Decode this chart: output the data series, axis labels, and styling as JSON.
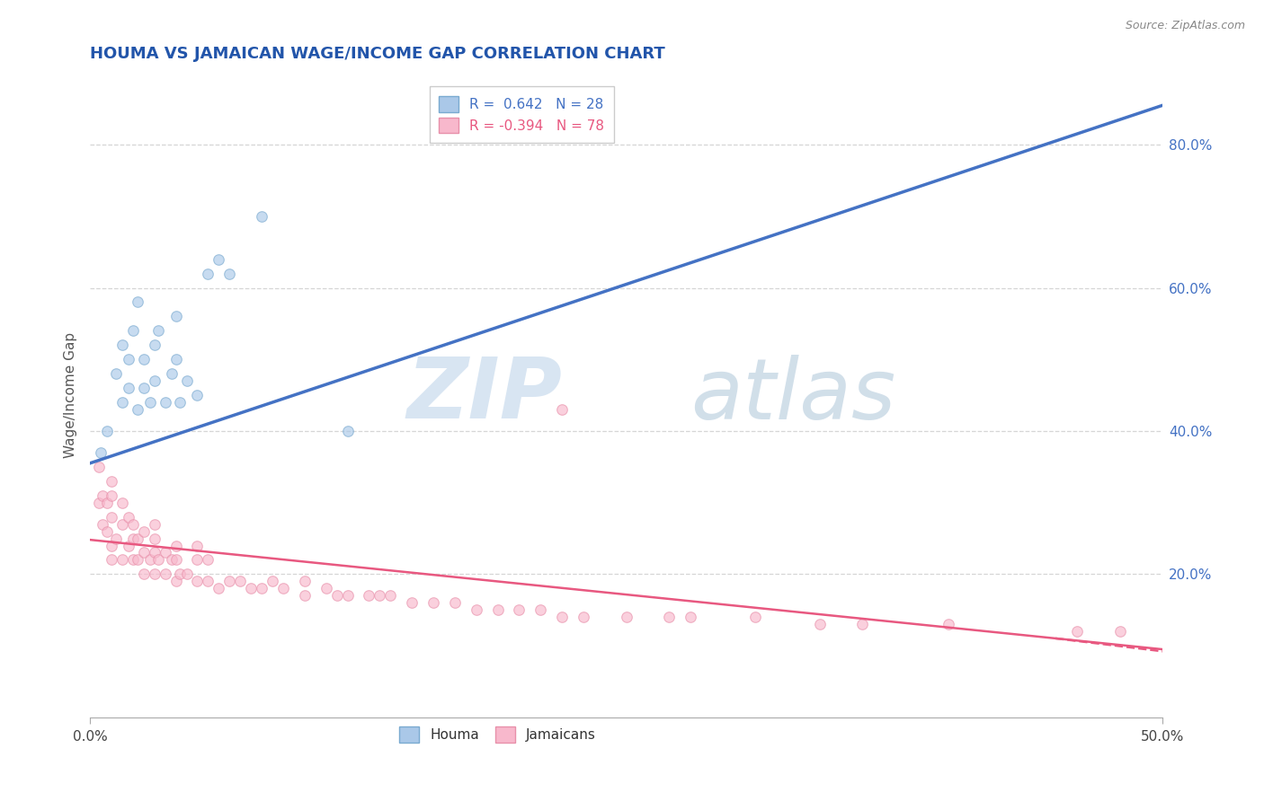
{
  "title": "HOUMA VS JAMAICAN WAGE/INCOME GAP CORRELATION CHART",
  "source_text": "Source: ZipAtlas.com",
  "ylabel": "Wage/Income Gap",
  "xmin": 0.0,
  "xmax": 0.5,
  "ymin": 0.0,
  "ymax": 0.9,
  "xtick_labels": [
    "0.0%",
    "50.0%"
  ],
  "xtick_vals": [
    0.0,
    0.5
  ],
  "ytick_labels": [
    "20.0%",
    "40.0%",
    "60.0%",
    "80.0%"
  ],
  "ytick_vals": [
    0.2,
    0.4,
    0.6,
    0.8
  ],
  "houma_R": 0.642,
  "houma_N": 28,
  "jamaican_R": -0.394,
  "jamaican_N": 78,
  "houma_color": "#aac8e8",
  "houma_edge_color": "#7aaad0",
  "jamaican_color": "#f8b8cc",
  "jamaican_edge_color": "#e890aa",
  "houma_line_color": "#4472c4",
  "jamaican_line_color": "#e85880",
  "title_color": "#2255aa",
  "watermark_zip_color": "#b0cce8",
  "watermark_atlas_color": "#c8dce8",
  "grid_style": "--",
  "grid_color": "#cccccc",
  "grid_alpha": 0.8,
  "marker_size": 70,
  "marker_alpha": 0.65,
  "houma_line_y0": 0.355,
  "houma_line_y1": 0.855,
  "jamaican_line_y0": 0.248,
  "jamaican_line_y1": 0.095,
  "houma_scatter_x": [
    0.005,
    0.008,
    0.012,
    0.015,
    0.015,
    0.018,
    0.018,
    0.02,
    0.022,
    0.022,
    0.025,
    0.025,
    0.028,
    0.03,
    0.03,
    0.032,
    0.035,
    0.038,
    0.04,
    0.04,
    0.042,
    0.045,
    0.05,
    0.055,
    0.06,
    0.065,
    0.08,
    0.12
  ],
  "houma_scatter_y": [
    0.37,
    0.4,
    0.48,
    0.44,
    0.52,
    0.46,
    0.5,
    0.54,
    0.43,
    0.58,
    0.46,
    0.5,
    0.44,
    0.47,
    0.52,
    0.54,
    0.44,
    0.48,
    0.5,
    0.56,
    0.44,
    0.47,
    0.45,
    0.62,
    0.64,
    0.62,
    0.7,
    0.4
  ],
  "jamaican_scatter_x": [
    0.004,
    0.004,
    0.006,
    0.006,
    0.008,
    0.008,
    0.01,
    0.01,
    0.01,
    0.01,
    0.01,
    0.012,
    0.015,
    0.015,
    0.015,
    0.018,
    0.018,
    0.02,
    0.02,
    0.02,
    0.022,
    0.022,
    0.025,
    0.025,
    0.025,
    0.028,
    0.03,
    0.03,
    0.03,
    0.03,
    0.032,
    0.035,
    0.035,
    0.038,
    0.04,
    0.04,
    0.04,
    0.042,
    0.045,
    0.05,
    0.05,
    0.05,
    0.055,
    0.055,
    0.06,
    0.065,
    0.07,
    0.075,
    0.08,
    0.085,
    0.09,
    0.1,
    0.1,
    0.11,
    0.115,
    0.12,
    0.13,
    0.135,
    0.14,
    0.15,
    0.16,
    0.17,
    0.18,
    0.19,
    0.2,
    0.21,
    0.22,
    0.23,
    0.25,
    0.27,
    0.28,
    0.31,
    0.34,
    0.36,
    0.4,
    0.46,
    0.48,
    0.22
  ],
  "jamaican_scatter_y": [
    0.3,
    0.35,
    0.27,
    0.31,
    0.26,
    0.3,
    0.22,
    0.24,
    0.28,
    0.31,
    0.33,
    0.25,
    0.22,
    0.27,
    0.3,
    0.24,
    0.28,
    0.22,
    0.25,
    0.27,
    0.22,
    0.25,
    0.2,
    0.23,
    0.26,
    0.22,
    0.2,
    0.23,
    0.25,
    0.27,
    0.22,
    0.2,
    0.23,
    0.22,
    0.19,
    0.22,
    0.24,
    0.2,
    0.2,
    0.19,
    0.22,
    0.24,
    0.19,
    0.22,
    0.18,
    0.19,
    0.19,
    0.18,
    0.18,
    0.19,
    0.18,
    0.17,
    0.19,
    0.18,
    0.17,
    0.17,
    0.17,
    0.17,
    0.17,
    0.16,
    0.16,
    0.16,
    0.15,
    0.15,
    0.15,
    0.15,
    0.14,
    0.14,
    0.14,
    0.14,
    0.14,
    0.14,
    0.13,
    0.13,
    0.13,
    0.12,
    0.12,
    0.43
  ]
}
